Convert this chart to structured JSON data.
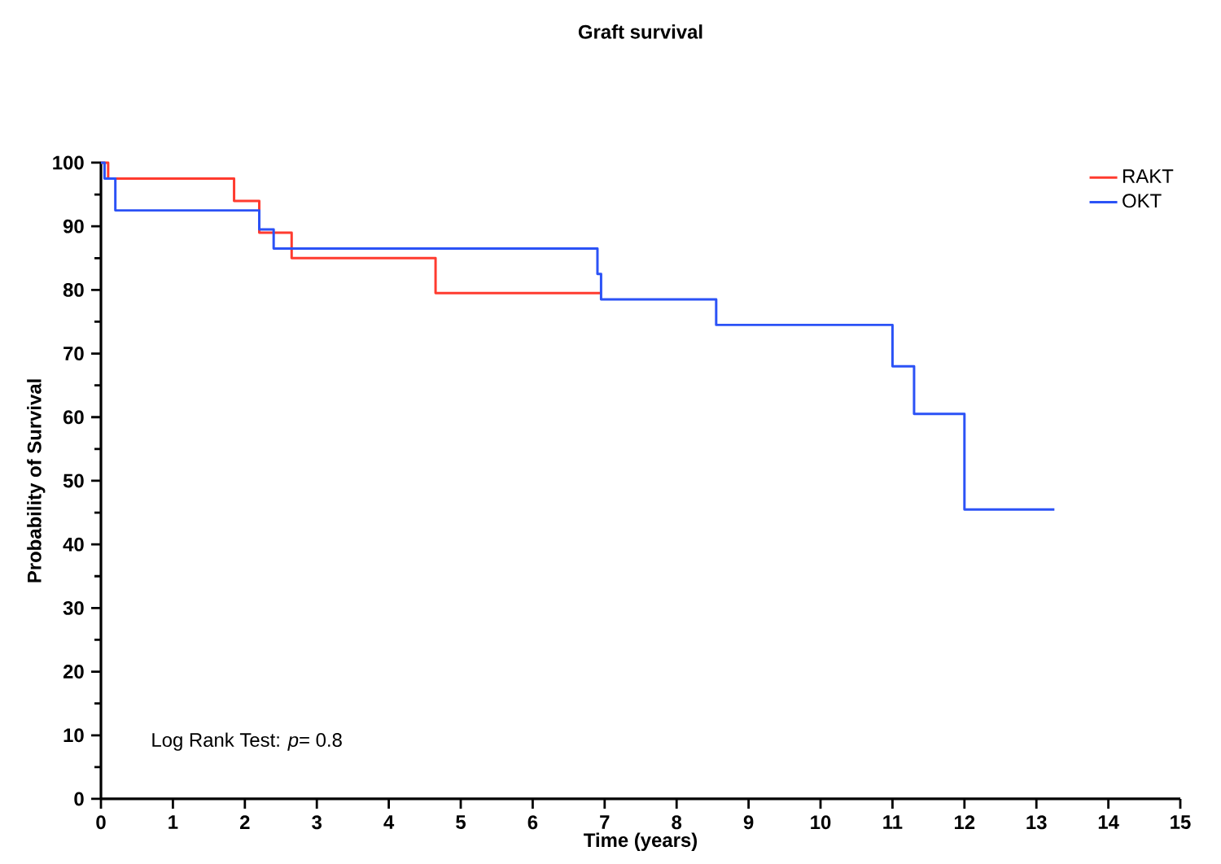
{
  "chart_data": {
    "type": "step",
    "title": "Graft survival",
    "xlabel": "Time (years)",
    "ylabel": "Probability of Survival",
    "annotations": [
      "Log Rank Test: *p*= 0.8"
    ],
    "series": [
      {
        "name": "RAKT",
        "color": "#ff3b2f",
        "x": [
          0,
          0.1,
          1.85,
          2.2,
          2.65,
          4.65,
          6.95
        ],
        "values": [
          100,
          97.5,
          94,
          89,
          85,
          79.5,
          79.5
        ]
      },
      {
        "name": "OKT",
        "color": "#2b52f6",
        "x": [
          0,
          0.05,
          0.2,
          2.2,
          2.4,
          6.9,
          6.95,
          8.55,
          11.0,
          11.3,
          12.0,
          13.25
        ],
        "values": [
          100,
          97.5,
          92.5,
          89.5,
          86.5,
          82.5,
          78.5,
          74.5,
          68,
          60.5,
          45.5,
          45.5
        ]
      }
    ],
    "xlim": [
      0,
      15
    ],
    "ylim": [
      0,
      100
    ],
    "xticks": [
      0,
      1,
      2,
      3,
      4,
      5,
      6,
      7,
      8,
      9,
      10,
      11,
      12,
      13,
      14,
      15
    ],
    "yticks": [
      0,
      10,
      20,
      30,
      40,
      50,
      60,
      70,
      80,
      90,
      100
    ],
    "grid": false,
    "legend": "top right",
    "marker": "none",
    "line_style": "solid"
  }
}
